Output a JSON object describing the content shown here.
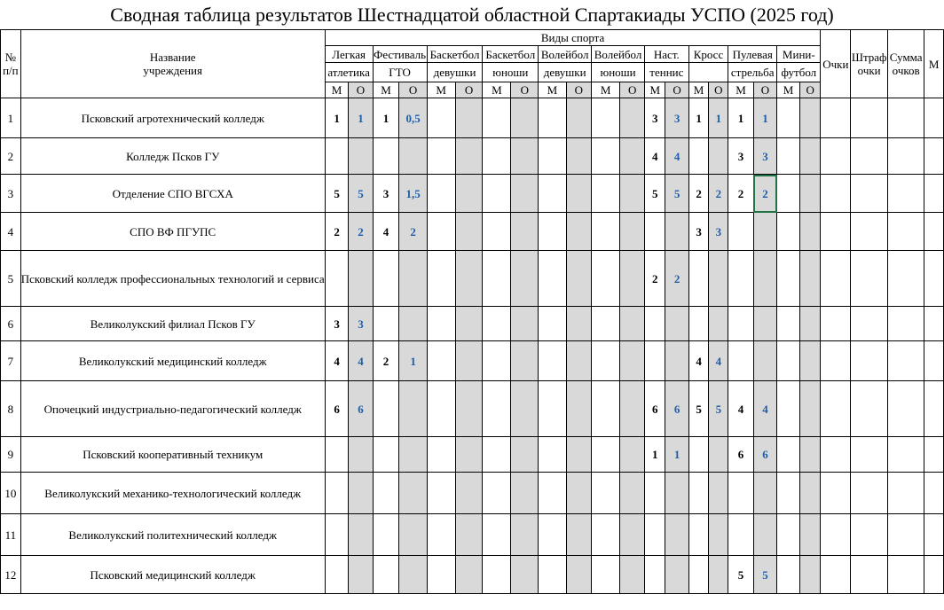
{
  "title": "Сводная таблица результатов Шестнадцатой областной Спартакиады УСПО (2025 год)",
  "header": {
    "number": [
      "№",
      "п/п"
    ],
    "name": [
      "Название",
      "учреждения"
    ],
    "sports_group": "Виды спорта",
    "sports": [
      [
        "Легкая",
        "атлетика"
      ],
      [
        "Фестиваль",
        "ГТО"
      ],
      [
        "Баскетбол",
        "девушки"
      ],
      [
        "Баскетбол",
        "юноши"
      ],
      [
        "Волейбол",
        "девушки"
      ],
      [
        "Волейбол",
        "юноши"
      ],
      [
        "Наст.",
        "теннис"
      ],
      [
        "Кросс",
        ""
      ],
      [
        "Пулевая",
        "стрельба"
      ],
      [
        "Мини-",
        "футбол"
      ]
    ],
    "sub_m": "М",
    "sub_o": "О",
    "points": [
      "Очки",
      ""
    ],
    "penalty": [
      "Штраф",
      "очки"
    ],
    "total": [
      "Сумма",
      "очков"
    ],
    "place": [
      "М",
      ""
    ]
  },
  "rows": [
    {
      "n": "1",
      "name": "Псковский агротехнический колледж",
      "results": [
        [
          "1",
          "1"
        ],
        [
          "1",
          "0,5"
        ],
        [
          "",
          ""
        ],
        [
          "",
          ""
        ],
        [
          "",
          ""
        ],
        [
          "",
          ""
        ],
        [
          "3",
          "3"
        ],
        [
          "1",
          "1"
        ],
        [
          "1",
          "1"
        ],
        [
          "",
          ""
        ]
      ]
    },
    {
      "n": "2",
      "name": "Колледж Псков ГУ",
      "results": [
        [
          "",
          ""
        ],
        [
          "",
          ""
        ],
        [
          "",
          ""
        ],
        [
          "",
          ""
        ],
        [
          "",
          ""
        ],
        [
          "",
          ""
        ],
        [
          "4",
          "4"
        ],
        [
          "",
          ""
        ],
        [
          "3",
          "3"
        ],
        [
          "",
          ""
        ]
      ]
    },
    {
      "n": "3",
      "name": "Отделение СПО ВГСХА",
      "results": [
        [
          "5",
          "5"
        ],
        [
          "3",
          "1,5"
        ],
        [
          "",
          ""
        ],
        [
          "",
          ""
        ],
        [
          "",
          ""
        ],
        [
          "",
          ""
        ],
        [
          "5",
          "5"
        ],
        [
          "2",
          "2"
        ],
        [
          "2",
          "2"
        ],
        [
          "",
          ""
        ]
      ]
    },
    {
      "n": "4",
      "name": "СПО ВФ ПГУПС",
      "results": [
        [
          "2",
          "2"
        ],
        [
          "4",
          "2"
        ],
        [
          "",
          ""
        ],
        [
          "",
          ""
        ],
        [
          "",
          ""
        ],
        [
          "",
          ""
        ],
        [
          "",
          ""
        ],
        [
          "3",
          "3"
        ],
        [
          "",
          ""
        ],
        [
          "",
          ""
        ]
      ]
    },
    {
      "n": "5",
      "name": "Псковский колледж профессиональных технологий и сервиса",
      "results": [
        [
          "",
          ""
        ],
        [
          "",
          ""
        ],
        [
          "",
          ""
        ],
        [
          "",
          ""
        ],
        [
          "",
          ""
        ],
        [
          "",
          ""
        ],
        [
          "2",
          "2"
        ],
        [
          "",
          ""
        ],
        [
          "",
          ""
        ],
        [
          "",
          ""
        ]
      ]
    },
    {
      "n": "6",
      "name": "Великолукский филиал Псков ГУ",
      "results": [
        [
          "3",
          "3"
        ],
        [
          "",
          ""
        ],
        [
          "",
          ""
        ],
        [
          "",
          ""
        ],
        [
          "",
          ""
        ],
        [
          "",
          ""
        ],
        [
          "",
          ""
        ],
        [
          "",
          ""
        ],
        [
          "",
          ""
        ],
        [
          "",
          ""
        ]
      ]
    },
    {
      "n": "7",
      "name": "Великолукский медицинский колледж",
      "results": [
        [
          "4",
          "4"
        ],
        [
          "2",
          "1"
        ],
        [
          "",
          ""
        ],
        [
          "",
          ""
        ],
        [
          "",
          ""
        ],
        [
          "",
          ""
        ],
        [
          "",
          ""
        ],
        [
          "4",
          "4"
        ],
        [
          "",
          ""
        ],
        [
          "",
          ""
        ]
      ]
    },
    {
      "n": "8",
      "name": "Опочецкий индустриально-педагогический колледж",
      "results": [
        [
          "6",
          "6"
        ],
        [
          "",
          ""
        ],
        [
          "",
          ""
        ],
        [
          "",
          ""
        ],
        [
          "",
          ""
        ],
        [
          "",
          ""
        ],
        [
          "6",
          "6"
        ],
        [
          "5",
          "5"
        ],
        [
          "4",
          "4"
        ],
        [
          "",
          ""
        ]
      ]
    },
    {
      "n": "9",
      "name": "Псковский кооперативный техникум",
      "results": [
        [
          "",
          ""
        ],
        [
          "",
          ""
        ],
        [
          "",
          ""
        ],
        [
          "",
          ""
        ],
        [
          "",
          ""
        ],
        [
          "",
          ""
        ],
        [
          "1",
          "1"
        ],
        [
          "",
          ""
        ],
        [
          "6",
          "6"
        ],
        [
          "",
          ""
        ]
      ]
    },
    {
      "n": "10",
      "name": "Великолукский механико-технологический колледж",
      "results": [
        [
          "",
          ""
        ],
        [
          "",
          ""
        ],
        [
          "",
          ""
        ],
        [
          "",
          ""
        ],
        [
          "",
          ""
        ],
        [
          "",
          ""
        ],
        [
          "",
          ""
        ],
        [
          "",
          ""
        ],
        [
          "",
          ""
        ],
        [
          "",
          ""
        ]
      ]
    },
    {
      "n": "11",
      "name": "Великолукский политехнический колледж",
      "results": [
        [
          "",
          ""
        ],
        [
          "",
          ""
        ],
        [
          "",
          ""
        ],
        [
          "",
          ""
        ],
        [
          "",
          ""
        ],
        [
          "",
          ""
        ],
        [
          "",
          ""
        ],
        [
          "",
          ""
        ],
        [
          "",
          ""
        ],
        [
          "",
          ""
        ]
      ]
    },
    {
      "n": "12",
      "name": "Псковский медицинский колледж",
      "results": [
        [
          "",
          ""
        ],
        [
          "",
          ""
        ],
        [
          "",
          ""
        ],
        [
          "",
          ""
        ],
        [
          "",
          ""
        ],
        [
          "",
          ""
        ],
        [
          "",
          ""
        ],
        [
          "",
          ""
        ],
        [
          "5",
          "5"
        ],
        [
          "",
          ""
        ]
      ]
    }
  ]
}
